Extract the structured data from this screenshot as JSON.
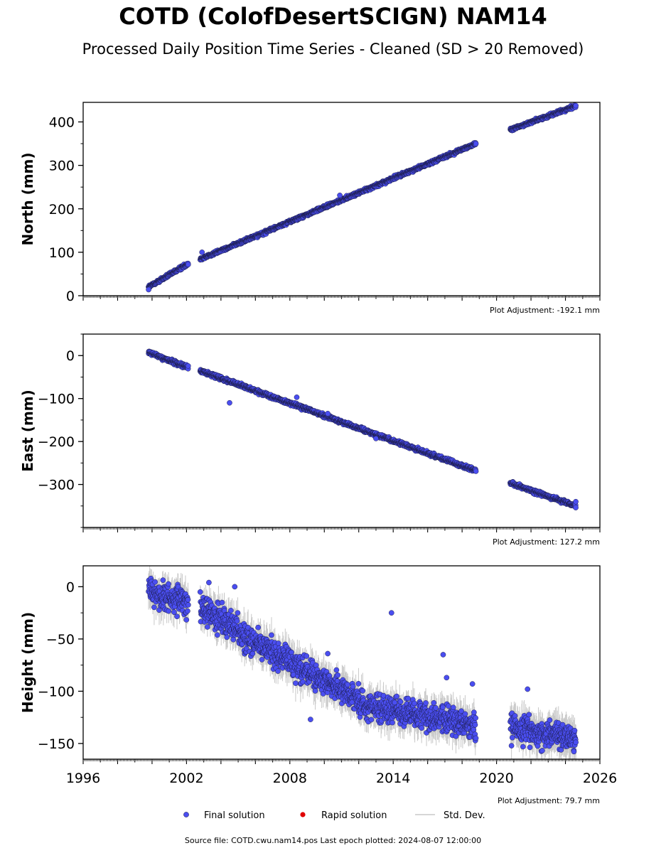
{
  "title": "COTD (ColofDesertSCIGN) NAM14",
  "subtitle": "Processed Daily Position Time Series - Cleaned (SD > 20 Removed)",
  "source_note": "Source file: COTD.cwu.nam14.pos  Last epoch plotted: 2024-08-07 12:00:00",
  "legend": {
    "final": "Final solution",
    "rapid": "Rapid solution",
    "std": "Std. Dev.",
    "colors": {
      "final": "#4a4ef0",
      "rapid": "#e00000",
      "std": "#c8c8c8",
      "edge": "#1a1a40"
    }
  },
  "chart_data": [
    {
      "type": "scatter",
      "ylabel": "North (mm)",
      "adjustment": "Plot Adjustment: -192.1 mm",
      "xlim": [
        1996,
        2026
      ],
      "ylim": [
        0,
        445
      ],
      "yticks": [
        0,
        100,
        200,
        300,
        400
      ],
      "ytick_labels": [
        "0",
        "100",
        "200",
        "300",
        "400"
      ],
      "segments": [
        {
          "start": 1999.8,
          "end": 2002.1,
          "y0": 20,
          "y1": 74,
          "noise": 2.5,
          "sd": 4
        },
        {
          "start": 2002.8,
          "end": 2018.8,
          "y0": 84,
          "y1": 350,
          "noise": 2.5,
          "sd": 4
        },
        {
          "start": 2020.8,
          "end": 2024.6,
          "y0": 382,
          "y1": 437,
          "noise": 2.5,
          "sd": 4
        }
      ],
      "outliers": [
        [
          1999.8,
          14
        ],
        [
          2002.9,
          100
        ],
        [
          2010.9,
          231
        ]
      ]
    },
    {
      "type": "scatter",
      "ylabel": "East (mm)",
      "adjustment": "Plot Adjustment: 127.2 mm",
      "xlim": [
        1996,
        2026
      ],
      "ylim": [
        -400,
        50
      ],
      "yticks": [
        -300,
        -200,
        -100,
        0
      ],
      "ytick_labels": [
        "−300",
        "−200",
        "−100",
        "0"
      ],
      "segments": [
        {
          "start": 1999.8,
          "end": 2002.1,
          "y0": 7,
          "y1": -28,
          "noise": 3,
          "sd": 5
        },
        {
          "start": 2002.8,
          "end": 2018.8,
          "y0": -35,
          "y1": -268,
          "noise": 3,
          "sd": 5
        },
        {
          "start": 2020.8,
          "end": 2024.6,
          "y0": -297,
          "y1": -350,
          "noise": 3,
          "sd": 5
        }
      ],
      "outliers": [
        [
          2004.5,
          -110
        ],
        [
          2008.4,
          -97
        ],
        [
          2010.2,
          -135
        ],
        [
          2013.0,
          -193
        ],
        [
          2024.6,
          -340
        ]
      ]
    },
    {
      "type": "scatter",
      "ylabel": "Height (mm)",
      "adjustment": "Plot Adjustment: 79.7 mm",
      "xlim": [
        1996,
        2026
      ],
      "ylim": [
        -165,
        20
      ],
      "yticks": [
        -150,
        -100,
        -50,
        0
      ],
      "ytick_labels": [
        "−150",
        "−100",
        "−50",
        "0"
      ],
      "xticks": [
        1996,
        2002,
        2008,
        2014,
        2020,
        2026
      ],
      "xtick_labels": [
        "1996",
        "2002",
        "2008",
        "2014",
        "2020",
        "2026"
      ],
      "segments": [
        {
          "start": 1999.8,
          "end": 2002.1,
          "y0": -5,
          "y1": -15,
          "noise": 9,
          "sd": 12
        },
        {
          "start": 2002.8,
          "end": 2005.0,
          "y0": -20,
          "y1": -40,
          "noise": 9,
          "sd": 12
        },
        {
          "start": 2005.0,
          "end": 2012.0,
          "y0": -45,
          "y1": -108,
          "noise": 9,
          "sd": 12
        },
        {
          "start": 2012.0,
          "end": 2018.8,
          "y0": -112,
          "y1": -132,
          "noise": 9,
          "sd": 12
        },
        {
          "start": 2020.8,
          "end": 2024.6,
          "y0": -135,
          "y1": -145,
          "noise": 9,
          "sd": 12
        }
      ],
      "outliers": [
        [
          2013.9,
          -25
        ],
        [
          2016.9,
          -65
        ],
        [
          2009.2,
          -127
        ],
        [
          2003.3,
          4
        ],
        [
          2004.8,
          0
        ],
        [
          2021.8,
          -98
        ],
        [
          2017.1,
          -87
        ],
        [
          2018.6,
          -93
        ],
        [
          2010.2,
          -64
        ]
      ]
    }
  ]
}
